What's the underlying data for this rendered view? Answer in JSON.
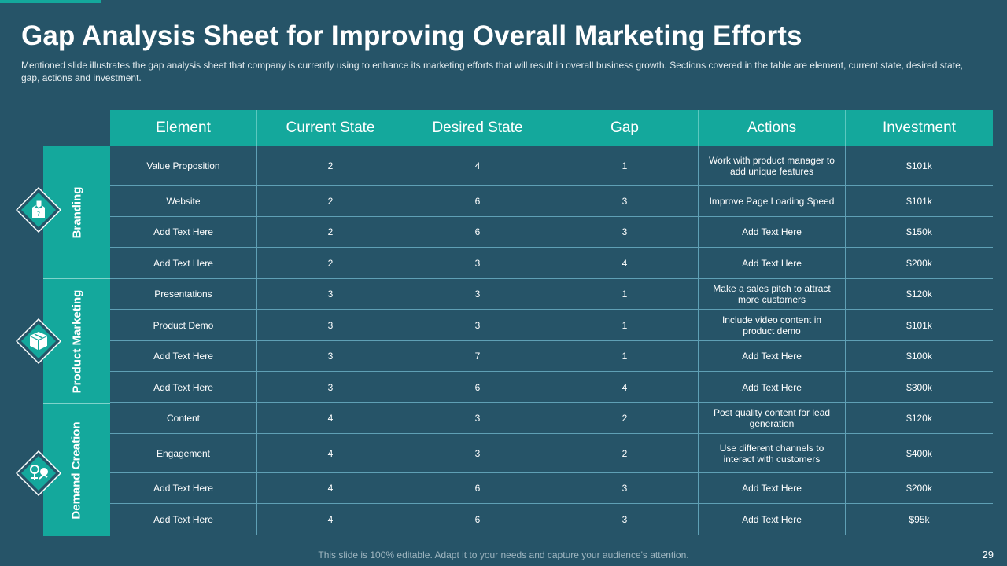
{
  "title": "Gap Analysis Sheet for Improving Overall Marketing Efforts",
  "subtitle": "Mentioned slide illustrates the gap analysis sheet that company is currently using to enhance its marketing efforts that will result in overall  business growth. Sections covered  in the table are element, current state, desired state, gap, actions and investment.",
  "table": {
    "headers": [
      "Element",
      "Current State",
      "Desired State",
      "Gap",
      "Actions",
      "Investment"
    ],
    "rows": [
      [
        "Value Proposition",
        "2",
        "4",
        "1",
        "Work with product manager to add unique features",
        "$101k"
      ],
      [
        "Website",
        "2",
        "6",
        "3",
        "Improve Page Loading Speed",
        "$101k"
      ],
      [
        "Add Text Here",
        "2",
        "6",
        "3",
        "Add Text Here",
        "$150k"
      ],
      [
        "Add Text Here",
        "2",
        "3",
        "4",
        "Add Text Here",
        "$200k"
      ],
      [
        "Presentations",
        "3",
        "3",
        "1",
        "Make a sales pitch to attract more customers",
        "$120k"
      ],
      [
        "Product Demo",
        "3",
        "3",
        "1",
        "Include video content in product demo",
        "$101k"
      ],
      [
        "Add Text Here",
        "3",
        "7",
        "1",
        "Add Text Here",
        "$100k"
      ],
      [
        "Add Text Here",
        "3",
        "6",
        "4",
        "Add Text Here",
        "$300k"
      ],
      [
        "Content",
        "4",
        "3",
        "2",
        "Post quality content for lead generation",
        "$120k"
      ],
      [
        "Engagement",
        "4",
        "3",
        "2",
        "Use different channels to interact with customers",
        "$400k"
      ],
      [
        "Add Text Here",
        "4",
        "6",
        "3",
        "Add Text Here",
        "$200k"
      ],
      [
        "Add Text Here",
        "4",
        "6",
        "3",
        "Add Text Here",
        "$95k"
      ]
    ]
  },
  "categories": [
    {
      "label": "Branding",
      "icon": "price-tag-box-icon"
    },
    {
      "label": "Product Marketing",
      "icon": "product-boxes-icon"
    },
    {
      "label": "Demand Creation",
      "icon": "target-growth-icon"
    }
  ],
  "footer": "This slide is 100% editable. Adapt it to your needs and capture your audience's attention.",
  "page_number": "29",
  "colors": {
    "background": "#265468",
    "accent": "#14a89c",
    "grid": "#5fa0b5"
  }
}
